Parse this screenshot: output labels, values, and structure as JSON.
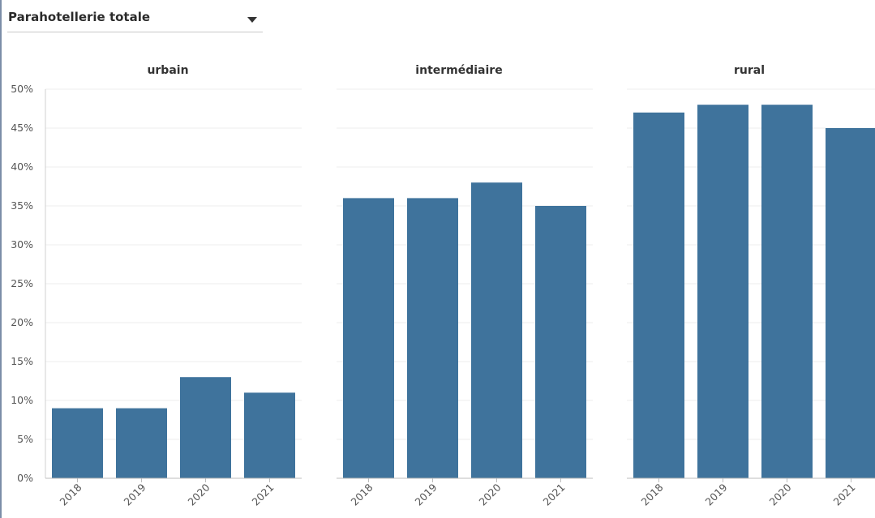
{
  "filter": {
    "selected": "Parahotellerie totale",
    "icon": "caret-down-icon"
  },
  "chart_data": {
    "type": "bar",
    "layout": "small-multiples",
    "ylim": [
      0,
      50
    ],
    "yticks": [
      "0%",
      "5%",
      "10%",
      "15%",
      "20%",
      "25%",
      "30%",
      "35%",
      "40%",
      "45%",
      "50%"
    ],
    "grid": true,
    "bar_color": "#3f739c",
    "categories": [
      "2018",
      "2019",
      "2020",
      "2021"
    ],
    "panels": [
      {
        "title": "urbain",
        "values": [
          9,
          9,
          13,
          11
        ]
      },
      {
        "title": "intermédiaire",
        "values": [
          36,
          36,
          38,
          35
        ]
      },
      {
        "title": "rural",
        "values": [
          47,
          48,
          48,
          45
        ]
      }
    ]
  }
}
